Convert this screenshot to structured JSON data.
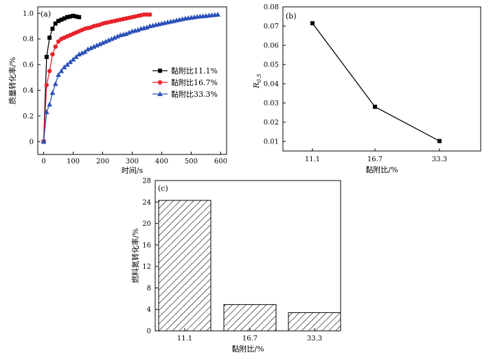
{
  "chart_data": [
    {
      "panel": "(a)",
      "type": "line",
      "xlabel": "时间/s",
      "ylabel": "质量转化率/%",
      "xlim": [
        -20,
        620
      ],
      "ylim": [
        -0.1,
        1.05
      ],
      "xticks": [
        0,
        100,
        200,
        300,
        400,
        500,
        600
      ],
      "yticks": [
        0,
        0.2,
        0.4,
        0.6,
        0.8,
        1.0
      ],
      "ytick_labels": [
        "0",
        "0.2",
        "0.4",
        "0.6",
        "0.8",
        "1.0"
      ],
      "legend_position": "right-middle",
      "series": [
        {
          "name": "黏附比11.1%",
          "color": "#000000",
          "marker": "square",
          "x": [
            0,
            10,
            20,
            30,
            40,
            50,
            60,
            70,
            80,
            90,
            100,
            110,
            120
          ],
          "y": [
            0,
            0.66,
            0.81,
            0.88,
            0.92,
            0.94,
            0.95,
            0.96,
            0.97,
            0.975,
            0.98,
            0.975,
            0.97
          ]
        },
        {
          "name": "黏附比16.7%",
          "color": "#e8222a",
          "marker": "circle",
          "x": [
            0,
            10,
            20,
            30,
            40,
            50,
            60,
            70,
            80,
            90,
            100,
            110,
            120,
            130,
            140,
            150,
            160,
            170,
            180,
            190,
            200,
            210,
            220,
            230,
            240,
            250,
            260,
            270,
            280,
            290,
            300,
            310,
            320,
            330,
            340,
            350,
            360
          ],
          "y": [
            0,
            0.44,
            0.55,
            0.68,
            0.74,
            0.78,
            0.8,
            0.81,
            0.82,
            0.83,
            0.84,
            0.85,
            0.86,
            0.87,
            0.88,
            0.885,
            0.89,
            0.9,
            0.905,
            0.91,
            0.92,
            0.925,
            0.93,
            0.935,
            0.94,
            0.945,
            0.95,
            0.955,
            0.96,
            0.965,
            0.97,
            0.975,
            0.98,
            0.985,
            0.99,
            0.99,
            0.99
          ]
        },
        {
          "name": "黏附比33.3%",
          "color": "#2a50b8",
          "marker": "triangle",
          "x": [
            0,
            10,
            20,
            30,
            40,
            50,
            60,
            70,
            80,
            90,
            100,
            110,
            120,
            130,
            140,
            150,
            160,
            170,
            180,
            190,
            200,
            210,
            220,
            230,
            240,
            250,
            260,
            270,
            280,
            290,
            300,
            310,
            320,
            330,
            340,
            350,
            360,
            370,
            380,
            390,
            400,
            410,
            420,
            430,
            440,
            450,
            460,
            470,
            480,
            490,
            500,
            510,
            520,
            530,
            540,
            550,
            560,
            570,
            580,
            590
          ],
          "y": [
            0,
            0.23,
            0.29,
            0.38,
            0.45,
            0.52,
            0.55,
            0.58,
            0.6,
            0.62,
            0.64,
            0.66,
            0.68,
            0.69,
            0.7,
            0.72,
            0.73,
            0.74,
            0.75,
            0.76,
            0.77,
            0.78,
            0.79,
            0.8,
            0.81,
            0.82,
            0.83,
            0.835,
            0.84,
            0.85,
            0.86,
            0.865,
            0.87,
            0.88,
            0.885,
            0.89,
            0.9,
            0.905,
            0.91,
            0.915,
            0.92,
            0.925,
            0.93,
            0.935,
            0.94,
            0.945,
            0.95,
            0.955,
            0.96,
            0.963,
            0.966,
            0.97,
            0.973,
            0.976,
            0.978,
            0.98,
            0.983,
            0.985,
            0.988,
            0.99
          ]
        }
      ]
    },
    {
      "panel": "(b)",
      "type": "line",
      "xlabel": "黏附比/%",
      "ylabel": "R",
      "ylabel_sub": "0.5",
      "categories": [
        "11.1",
        "16.7",
        "33.3"
      ],
      "ylim": [
        0.005,
        0.08
      ],
      "yticks": [
        0.01,
        0.02,
        0.03,
        0.04,
        0.05,
        0.06,
        0.07,
        0.08
      ],
      "ytick_labels": [
        "0.01",
        "0.02",
        "0.03",
        "0.04",
        "0.05",
        "0.06",
        "0.07",
        "0.08"
      ],
      "marker": "square",
      "color": "#000000",
      "values": [
        0.0715,
        0.028,
        0.0102
      ]
    },
    {
      "panel": "(c)",
      "type": "bar",
      "xlabel": "黏附比/%",
      "ylabel": "燃料氮转化率/%",
      "categories": [
        "11.1",
        "16.7",
        "33.3"
      ],
      "ylim": [
        0,
        28
      ],
      "yticks": [
        0,
        4,
        8,
        12,
        16,
        20,
        24,
        28
      ],
      "ytick_labels": [
        "0",
        "4",
        "8",
        "12",
        "16",
        "20",
        "24",
        "28"
      ],
      "bar_fill": "diagonal-hatch",
      "values": [
        24.3,
        4.9,
        3.4
      ]
    }
  ]
}
